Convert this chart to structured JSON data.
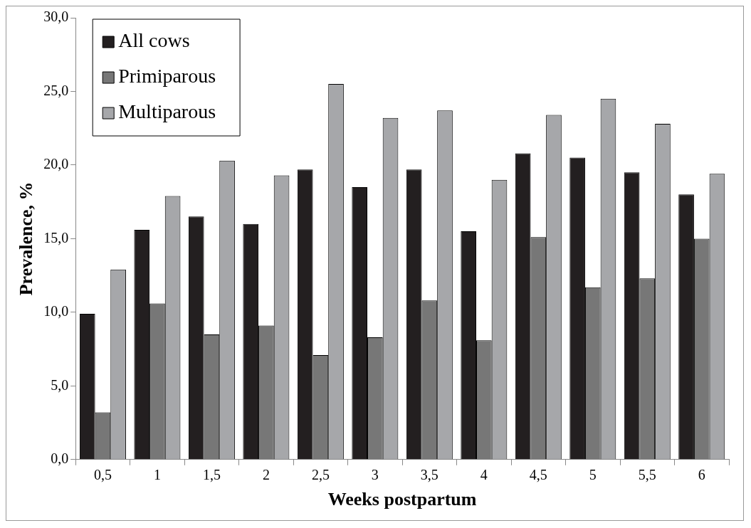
{
  "chart_data": {
    "type": "bar",
    "xlabel": "Weeks postpartum",
    "ylabel": "Prevalence, %",
    "categories": [
      "0,5",
      "1",
      "1,5",
      "2",
      "2,5",
      "3",
      "3,5",
      "4",
      "4,5",
      "5",
      "5,5",
      "6"
    ],
    "series": [
      {
        "name": "All cows",
        "color": "#231f20",
        "values": [
          9.9,
          15.6,
          16.5,
          16.0,
          19.7,
          18.5,
          19.7,
          15.5,
          20.8,
          20.5,
          19.5,
          18.0
        ]
      },
      {
        "name": "Primiparous",
        "color": "#777777",
        "values": [
          3.2,
          10.6,
          8.5,
          9.1,
          7.1,
          8.3,
          10.8,
          8.1,
          15.1,
          11.7,
          12.3,
          15.0
        ]
      },
      {
        "name": "Multiparous",
        "color": "#a6a7aa",
        "values": [
          12.9,
          17.9,
          20.3,
          19.3,
          25.5,
          23.2,
          23.7,
          19.0,
          23.4,
          24.5,
          22.8,
          19.4
        ]
      }
    ],
    "ylim": [
      0,
      30
    ],
    "yticks": [
      {
        "value": 0,
        "label": "0,0"
      },
      {
        "value": 5,
        "label": "5,0"
      },
      {
        "value": 10,
        "label": "10,0"
      },
      {
        "value": 15,
        "label": "15,0"
      },
      {
        "value": 20,
        "label": "20,0"
      },
      {
        "value": 25,
        "label": "25,0"
      },
      {
        "value": 30,
        "label": "30,0"
      }
    ],
    "grid": false,
    "legend": "top left"
  }
}
